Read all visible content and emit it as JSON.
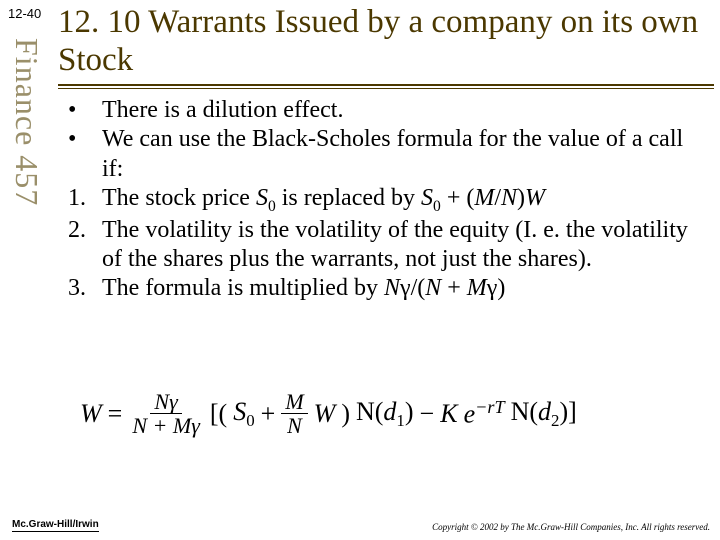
{
  "page_number": "12-40",
  "sidebar": "Finance 457",
  "title": "12. 10 Warrants Issued by a company on its own Stock",
  "bullets": [
    {
      "marker": "•",
      "text_html": "There is a dilution effect."
    },
    {
      "marker": "•",
      "text_html": "We can use the Black-Scholes formula for the value of a call if:"
    },
    {
      "marker": "1.",
      "text_html": "The stock price <span class='ital'>S</span><span class='sub'>0</span> is replaced by <span class='ital'>S</span><span class='sub'>0</span> + (<span class='ital'>M</span>/<span class='ital'>N</span>)<span class='ital'>W</span>"
    },
    {
      "marker": "2.",
      "text_html": "The volatility is the volatility of the equity (I. e. the volatility of the shares plus the warrants, not just the shares)."
    },
    {
      "marker": "3.",
      "text_html": "The formula is multiplied by <span class='ital'>N</span>γ/(<span class='ital'>N</span> + <span class='ital'>M</span>γ)"
    }
  ],
  "formula": {
    "lhs": "W",
    "frac1_num": "Nγ",
    "frac1_den": "N + Mγ",
    "open": "[(",
    "S0": "S",
    "S0sub": "0",
    "plus1": " + ",
    "frac2_num": "M",
    "frac2_den": "N",
    "W2": "W",
    "close1": ") ",
    "Nd1_pre": "N(",
    "d1": "d",
    "d1sub": "1",
    "Nd1_post": ")",
    "minus": " − ",
    "K": "K",
    "e": "e",
    "exp": "−rT",
    "Nd2_pre": " N(",
    "d2": "d",
    "d2sub": "2",
    "Nd2_post": ")]"
  },
  "footer_left": "Mc.Graw-Hill/Irwin",
  "footer_right": "Copyright © 2002 by The Mc.Graw-Hill Companies, Inc. All rights reserved.",
  "colors": {
    "title": "#4b3800",
    "sidebar": "#9a8f6a",
    "bg": "#ffffff"
  }
}
